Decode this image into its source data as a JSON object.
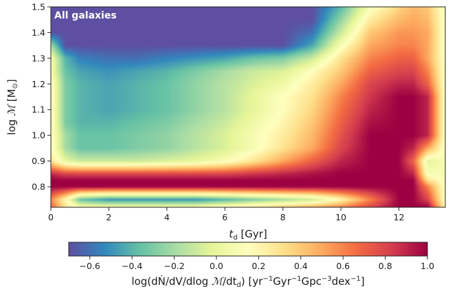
{
  "chart_data": {
    "type": "heatmap",
    "title": "All galaxies",
    "xlabel": "t_d [Gyr]",
    "ylabel": "log M [M_sun]",
    "xlim": [
      0,
      13.6
    ],
    "ylim": [
      0.72,
      1.5
    ],
    "x_ticks": [
      "0",
      "2",
      "4",
      "6",
      "8",
      "10",
      "12"
    ],
    "x_tick_values": [
      0,
      2,
      4,
      6,
      8,
      10,
      12
    ],
    "y_ticks": [
      "0.8",
      "0.9",
      "1.0",
      "1.1",
      "1.2",
      "1.3",
      "1.4",
      "1.5"
    ],
    "y_tick_values": [
      0.8,
      0.9,
      1.0,
      1.1,
      1.2,
      1.3,
      1.4,
      1.5
    ],
    "colorbar": {
      "label": "log(dN/dV/dlog M/dt_d) [yr^-1 Gyr^-1 Gpc^-3 dex^-1]",
      "range": [
        -0.7,
        1.0
      ],
      "ticks": [
        "−0.6",
        "−0.4",
        "−0.2",
        "0.0",
        "0.2",
        "0.4",
        "0.6",
        "0.8",
        "1.0"
      ],
      "tick_values": [
        -0.6,
        -0.4,
        -0.2,
        0.0,
        0.2,
        0.4,
        0.6,
        0.8,
        1.0
      ],
      "colormap": "Spectral_r"
    },
    "grid_x": [
      0,
      0.5,
      1,
      2,
      3,
      4,
      5,
      6,
      7,
      8,
      9,
      10,
      11,
      12,
      12.5,
      13,
      13.6
    ],
    "grid_y": [
      0.72,
      0.75,
      0.8,
      0.825,
      0.85,
      0.9,
      0.95,
      1.0,
      1.05,
      1.1,
      1.15,
      1.2,
      1.25,
      1.3,
      1.35,
      1.4,
      1.45,
      1.5
    ],
    "z": [
      [
        0.7,
        0.3,
        0.1,
        0.1,
        0.1,
        0.1,
        0.1,
        0.2,
        0.3,
        0.4,
        0.5,
        0.6,
        0.8,
        1.0,
        1.0,
        1.0,
        0.2
      ],
      [
        0.6,
        0.2,
        -0.35,
        -0.5,
        -0.5,
        -0.5,
        -0.5,
        -0.4,
        -0.3,
        -0.2,
        -0.1,
        0.2,
        0.6,
        1.0,
        1.0,
        0.8,
        0.1
      ],
      [
        1.0,
        1.0,
        1.0,
        1.0,
        1.0,
        1.0,
        1.0,
        1.0,
        1.0,
        1.0,
        1.0,
        1.0,
        1.0,
        1.0,
        1.0,
        0.6,
        0.1
      ],
      [
        1.0,
        1.0,
        1.0,
        1.0,
        1.0,
        1.0,
        1.0,
        1.0,
        1.0,
        1.0,
        1.0,
        1.0,
        1.0,
        1.0,
        1.0,
        0.3,
        0.1
      ],
      [
        0.9,
        0.8,
        0.8,
        0.8,
        0.8,
        0.8,
        0.8,
        0.8,
        0.85,
        0.9,
        0.95,
        1.0,
        1.0,
        1.0,
        0.9,
        0.1,
        0.1
      ],
      [
        0.3,
        0.0,
        -0.1,
        -0.1,
        -0.1,
        -0.05,
        0.0,
        0.1,
        0.3,
        0.5,
        0.7,
        0.9,
        1.0,
        1.0,
        0.7,
        0.0,
        0.1
      ],
      [
        0.2,
        -0.2,
        -0.35,
        -0.35,
        -0.3,
        -0.25,
        -0.15,
        -0.05,
        0.1,
        0.3,
        0.5,
        0.8,
        1.0,
        1.0,
        0.9,
        0.5,
        0.1
      ],
      [
        0.2,
        -0.2,
        -0.35,
        -0.35,
        -0.3,
        -0.25,
        -0.15,
        -0.05,
        0.1,
        0.25,
        0.45,
        0.75,
        1.0,
        1.0,
        1.0,
        0.9,
        0.1
      ],
      [
        0.2,
        -0.3,
        -0.4,
        -0.4,
        -0.35,
        -0.3,
        -0.2,
        -0.1,
        0.05,
        0.2,
        0.4,
        0.7,
        0.95,
        1.0,
        1.0,
        0.9,
        0.1
      ],
      [
        0.2,
        -0.3,
        -0.4,
        -0.45,
        -0.4,
        -0.35,
        -0.25,
        -0.15,
        0.0,
        0.15,
        0.35,
        0.65,
        0.9,
        1.0,
        1.0,
        0.9,
        0.1
      ],
      [
        0.2,
        -0.3,
        -0.4,
        -0.45,
        -0.4,
        -0.35,
        -0.25,
        -0.15,
        0.0,
        0.15,
        0.3,
        0.6,
        0.85,
        1.0,
        1.0,
        0.9,
        0.1
      ],
      [
        0.2,
        -0.3,
        -0.4,
        -0.45,
        -0.4,
        -0.35,
        -0.25,
        -0.15,
        -0.05,
        0.05,
        0.25,
        0.5,
        0.8,
        0.9,
        0.9,
        0.7,
        0.1
      ],
      [
        0.1,
        -0.35,
        -0.45,
        -0.5,
        -0.45,
        -0.4,
        -0.3,
        -0.2,
        -0.1,
        -0.05,
        0.15,
        0.4,
        0.7,
        0.8,
        0.8,
        0.6,
        0.1
      ],
      [
        0.1,
        -0.4,
        -0.55,
        -0.6,
        -0.6,
        -0.55,
        -0.5,
        -0.45,
        -0.35,
        -0.3,
        -0.1,
        0.3,
        0.6,
        0.7,
        0.7,
        0.5,
        0.1
      ],
      [
        -0.2,
        -0.7,
        -0.7,
        -0.7,
        -0.7,
        -0.7,
        -0.7,
        -0.7,
        -0.7,
        -0.7,
        -0.45,
        0.1,
        0.5,
        0.6,
        0.6,
        0.5,
        0.1
      ],
      [
        -0.7,
        -0.7,
        -0.7,
        -0.7,
        -0.7,
        -0.7,
        -0.7,
        -0.7,
        -0.7,
        -0.7,
        -0.6,
        -0.1,
        0.4,
        0.55,
        0.55,
        0.5,
        0.1
      ],
      [
        -0.7,
        -0.7,
        -0.7,
        -0.7,
        -0.7,
        -0.7,
        -0.7,
        -0.7,
        -0.7,
        -0.7,
        -0.7,
        -0.25,
        0.25,
        0.45,
        0.5,
        0.45,
        0.1
      ],
      [
        -0.7,
        -0.7,
        -0.7,
        -0.7,
        -0.7,
        -0.7,
        -0.7,
        -0.7,
        -0.7,
        -0.7,
        -0.7,
        -0.4,
        0.1,
        0.35,
        0.45,
        0.4,
        0.1
      ]
    ]
  }
}
